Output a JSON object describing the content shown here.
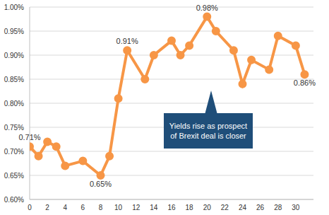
{
  "chart_data": {
    "type": "line",
    "x": [
      0,
      1,
      2,
      3,
      4,
      6,
      8,
      9,
      10,
      11,
      13,
      14,
      16,
      17,
      18,
      20,
      21,
      23,
      24,
      25,
      27,
      28,
      30,
      31
    ],
    "values": [
      0.71,
      0.69,
      0.72,
      0.71,
      0.67,
      0.68,
      0.65,
      0.69,
      0.81,
      0.91,
      0.85,
      0.9,
      0.93,
      0.9,
      0.92,
      0.98,
      0.95,
      0.91,
      0.84,
      0.89,
      0.87,
      0.94,
      0.92,
      0.86
    ],
    "value_labels": [
      "0.71%",
      null,
      null,
      null,
      null,
      null,
      "0.65%",
      null,
      null,
      "0.91%",
      null,
      null,
      null,
      null,
      null,
      "0.98%",
      null,
      null,
      null,
      null,
      null,
      null,
      null,
      "0.86%"
    ],
    "data_labels": true,
    "color": "#f79646",
    "marker": "circle",
    "xlim": [
      0,
      32
    ],
    "xticks": [
      0,
      2,
      4,
      6,
      8,
      10,
      12,
      14,
      16,
      18,
      20,
      22,
      24,
      26,
      28,
      30
    ],
    "ylim": [
      0.6,
      1.0
    ],
    "yticks": [
      {
        "value": 0.6,
        "label": "0.60%"
      },
      {
        "value": 0.65,
        "label": "0.65%"
      },
      {
        "value": 0.7,
        "label": "0.70%"
      },
      {
        "value": 0.75,
        "label": "0.75%"
      },
      {
        "value": 0.8,
        "label": "0.80%"
      },
      {
        "value": 0.85,
        "label": "0.85%"
      },
      {
        "value": 0.9,
        "label": "0.90%"
      },
      {
        "value": 0.95,
        "label": "0.95%"
      },
      {
        "value": 1.0,
        "label": "1.00%"
      }
    ],
    "grid": true,
    "annotations": [
      "Yields rise as prospect of Brexit deal is closer"
    ]
  }
}
